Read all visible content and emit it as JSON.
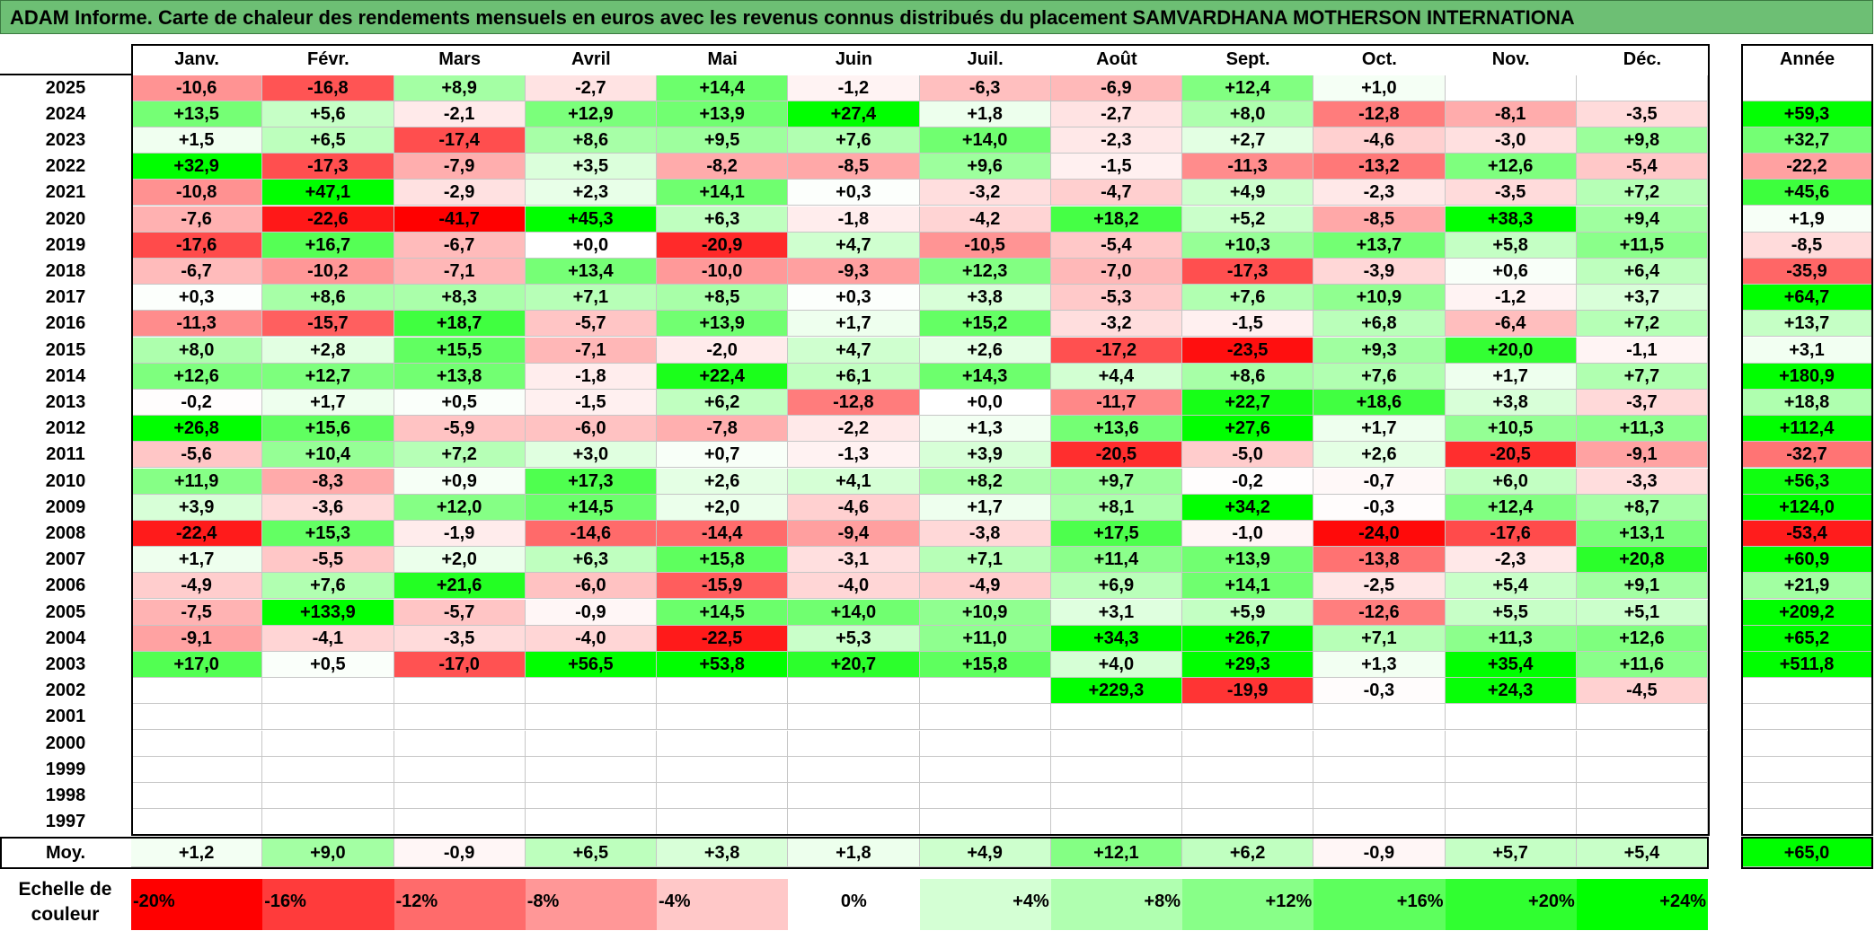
{
  "title": "ADAM Informe. Carte de chaleur des rendements mensuels en euros avec les revenus connus distribués du placement SAMVARDHANA MOTHERSON INTERNATIONA",
  "chart_data": {
    "type": "heatmap",
    "title": "ADAM Informe. Carte de chaleur des rendements mensuels en euros avec les revenus connus distribués du placement SAMVARDHANA MOTHERSON INTERNATIONA",
    "columns": [
      "Janv.",
      "Févr.",
      "Mars",
      "Avril",
      "Mai",
      "Juin",
      "Juil.",
      "Août",
      "Sept.",
      "Oct.",
      "Nov.",
      "Déc."
    ],
    "annual_header": "Année",
    "rows": [
      {
        "year": "2025",
        "values": [
          "-10,6",
          "-16,8",
          "+8,9",
          "-2,7",
          "+14,4",
          "-1,2",
          "-6,3",
          "-6,9",
          "+12,4",
          "+1,0",
          "",
          ""
        ],
        "annual": ""
      },
      {
        "year": "2024",
        "values": [
          "+13,5",
          "+5,6",
          "-2,1",
          "+12,9",
          "+13,9",
          "+27,4",
          "+1,8",
          "-2,7",
          "+8,0",
          "-12,8",
          "-8,1",
          "-3,5"
        ],
        "annual": "+59,3"
      },
      {
        "year": "2023",
        "values": [
          "+1,5",
          "+6,5",
          "-17,4",
          "+8,6",
          "+9,5",
          "+7,6",
          "+14,0",
          "-2,3",
          "+2,7",
          "-4,6",
          "-3,0",
          "+9,8"
        ],
        "annual": "+32,7"
      },
      {
        "year": "2022",
        "values": [
          "+32,9",
          "-17,3",
          "-7,9",
          "+3,5",
          "-8,2",
          "-8,5",
          "+9,6",
          "-1,5",
          "-11,3",
          "-13,2",
          "+12,6",
          "-5,4"
        ],
        "annual": "-22,2"
      },
      {
        "year": "2021",
        "values": [
          "-10,8",
          "+47,1",
          "-2,9",
          "+2,3",
          "+14,1",
          "+0,3",
          "-3,2",
          "-4,7",
          "+4,9",
          "-2,3",
          "-3,5",
          "+7,2"
        ],
        "annual": "+45,6"
      },
      {
        "year": "2020",
        "values": [
          "-7,6",
          "-22,6",
          "-41,7",
          "+45,3",
          "+6,3",
          "-1,8",
          "-4,2",
          "+18,2",
          "+5,2",
          "-8,5",
          "+38,3",
          "+9,4"
        ],
        "annual": "+1,9"
      },
      {
        "year": "2019",
        "values": [
          "-17,6",
          "+16,7",
          "-6,7",
          "+0,0",
          "-20,9",
          "+4,7",
          "-10,5",
          "-5,4",
          "+10,3",
          "+13,7",
          "+5,8",
          "+11,5"
        ],
        "annual": "-8,5"
      },
      {
        "year": "2018",
        "values": [
          "-6,7",
          "-10,2",
          "-7,1",
          "+13,4",
          "-10,0",
          "-9,3",
          "+12,3",
          "-7,0",
          "-17,3",
          "-3,9",
          "+0,6",
          "+6,4"
        ],
        "annual": "-35,9"
      },
      {
        "year": "2017",
        "values": [
          "+0,3",
          "+8,6",
          "+8,3",
          "+7,1",
          "+8,5",
          "+0,3",
          "+3,8",
          "-5,3",
          "+7,6",
          "+10,9",
          "-1,2",
          "+3,7"
        ],
        "annual": "+64,7"
      },
      {
        "year": "2016",
        "values": [
          "-11,3",
          "-15,7",
          "+18,7",
          "-5,7",
          "+13,9",
          "+1,7",
          "+15,2",
          "-3,2",
          "-1,5",
          "+6,8",
          "-6,4",
          "+7,2"
        ],
        "annual": "+13,7"
      },
      {
        "year": "2015",
        "values": [
          "+8,0",
          "+2,8",
          "+15,5",
          "-7,1",
          "-2,0",
          "+4,7",
          "+2,6",
          "-17,2",
          "-23,5",
          "+9,3",
          "+20,0",
          "-1,1"
        ],
        "annual": "+3,1"
      },
      {
        "year": "2014",
        "values": [
          "+12,6",
          "+12,7",
          "+13,8",
          "-1,8",
          "+22,4",
          "+6,1",
          "+14,3",
          "+4,4",
          "+8,6",
          "+7,6",
          "+1,7",
          "+7,7"
        ],
        "annual": "+180,9"
      },
      {
        "year": "2013",
        "values": [
          "-0,2",
          "+1,7",
          "+0,5",
          "-1,5",
          "+6,2",
          "-12,8",
          "+0,0",
          "-11,7",
          "+22,7",
          "+18,6",
          "+3,8",
          "-3,7"
        ],
        "annual": "+18,8"
      },
      {
        "year": "2012",
        "values": [
          "+26,8",
          "+15,6",
          "-5,9",
          "-6,0",
          "-7,8",
          "-2,2",
          "+1,3",
          "+13,6",
          "+27,6",
          "+1,7",
          "+10,5",
          "+11,3"
        ],
        "annual": "+112,4"
      },
      {
        "year": "2011",
        "values": [
          "-5,6",
          "+10,4",
          "+7,2",
          "+3,0",
          "+0,7",
          "-1,3",
          "+3,9",
          "-20,5",
          "-5,0",
          "+2,6",
          "-20,5",
          "-9,1"
        ],
        "annual": "-32,7"
      },
      {
        "year": "2010",
        "values": [
          "+11,9",
          "-8,3",
          "+0,9",
          "+17,3",
          "+2,6",
          "+4,1",
          "+8,2",
          "+9,7",
          "-0,2",
          "-0,7",
          "+6,0",
          "-3,3"
        ],
        "annual": "+56,3"
      },
      {
        "year": "2009",
        "values": [
          "+3,9",
          "-3,6",
          "+12,0",
          "+14,5",
          "+2,0",
          "-4,6",
          "+1,7",
          "+8,1",
          "+34,2",
          "-0,3",
          "+12,4",
          "+8,7"
        ],
        "annual": "+124,0"
      },
      {
        "year": "2008",
        "values": [
          "-22,4",
          "+15,3",
          "-1,9",
          "-14,6",
          "-14,4",
          "-9,4",
          "-3,8",
          "+17,5",
          "-1,0",
          "-24,0",
          "-17,6",
          "+13,1"
        ],
        "annual": "-53,4"
      },
      {
        "year": "2007",
        "values": [
          "+1,7",
          "-5,5",
          "+2,0",
          "+6,3",
          "+15,8",
          "-3,1",
          "+7,1",
          "+11,4",
          "+13,9",
          "-13,8",
          "-2,3",
          "+20,8"
        ],
        "annual": "+60,9"
      },
      {
        "year": "2006",
        "values": [
          "-4,9",
          "+7,6",
          "+21,6",
          "-6,0",
          "-15,9",
          "-4,0",
          "-4,9",
          "+6,9",
          "+14,1",
          "-2,5",
          "+5,4",
          "+9,1"
        ],
        "annual": "+21,9"
      },
      {
        "year": "2005",
        "values": [
          "-7,5",
          "+133,9",
          "-5,7",
          "-0,9",
          "+14,5",
          "+14,0",
          "+10,9",
          "+3,1",
          "+5,9",
          "-12,6",
          "+5,5",
          "+5,1"
        ],
        "annual": "+209,2"
      },
      {
        "year": "2004",
        "values": [
          "-9,1",
          "-4,1",
          "-3,5",
          "-4,0",
          "-22,5",
          "+5,3",
          "+11,0",
          "+34,3",
          "+26,7",
          "+7,1",
          "+11,3",
          "+12,6"
        ],
        "annual": "+65,2"
      },
      {
        "year": "2003",
        "values": [
          "+17,0",
          "+0,5",
          "-17,0",
          "+56,5",
          "+53,8",
          "+20,7",
          "+15,8",
          "+4,0",
          "+29,3",
          "+1,3",
          "+35,4",
          "+11,6"
        ],
        "annual": "+511,8"
      },
      {
        "year": "2002",
        "values": [
          "",
          "",
          "",
          "",
          "",
          "",
          "",
          "+229,3",
          "-19,9",
          "-0,3",
          "+24,3",
          "-4,5"
        ],
        "annual": ""
      },
      {
        "year": "2001",
        "values": [
          "",
          "",
          "",
          "",
          "",
          "",
          "",
          "",
          "",
          "",
          "",
          ""
        ],
        "annual": ""
      },
      {
        "year": "2000",
        "values": [
          "",
          "",
          "",
          "",
          "",
          "",
          "",
          "",
          "",
          "",
          "",
          ""
        ],
        "annual": ""
      },
      {
        "year": "1999",
        "values": [
          "",
          "",
          "",
          "",
          "",
          "",
          "",
          "",
          "",
          "",
          "",
          ""
        ],
        "annual": ""
      },
      {
        "year": "1998",
        "values": [
          "",
          "",
          "",
          "",
          "",
          "",
          "",
          "",
          "",
          "",
          "",
          ""
        ],
        "annual": ""
      },
      {
        "year": "1997",
        "values": [
          "",
          "",
          "",
          "",
          "",
          "",
          "",
          "",
          "",
          "",
          "",
          ""
        ],
        "annual": ""
      }
    ],
    "average": {
      "label": "Moy.",
      "values": [
        "+1,2",
        "+9,0",
        "-0,9",
        "+6,5",
        "+3,8",
        "+1,8",
        "+4,9",
        "+12,1",
        "+6,2",
        "-0,9",
        "+5,7",
        "+5,4"
      ],
      "annual": "+65,0"
    },
    "scale": {
      "title": "Echelle de couleur",
      "labels": [
        "-20%",
        "-16%",
        "-12%",
        "-8%",
        "-4%",
        "0%",
        "+4%",
        "+8%",
        "+12%",
        "+16%",
        "+20%",
        "+24%"
      ],
      "colors": [
        "#ff0000",
        "#ff3b3b",
        "#ff6b6b",
        "#ff9797",
        "#ffc8c8",
        "#ffffff",
        "#d4ffd4",
        "#b0ffb0",
        "#88ff88",
        "#5dff5d",
        "#30ff30",
        "#00ff00"
      ]
    },
    "grid": true
  }
}
